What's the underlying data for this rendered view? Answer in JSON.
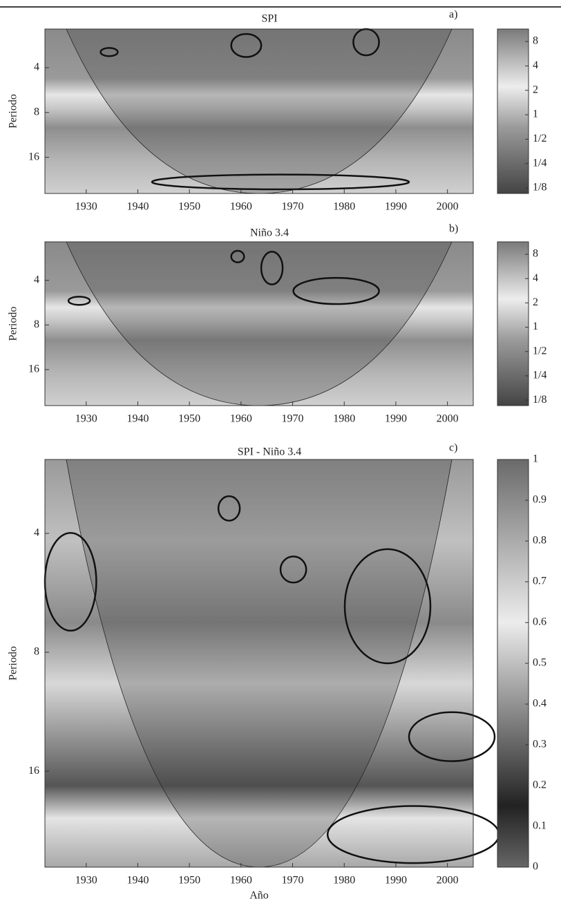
{
  "chart_data": [
    {
      "type": "heatmap",
      "title": "SPI",
      "panel_label": "a)",
      "ylabel": "Periodo",
      "xlim": [
        1922,
        2005
      ],
      "xticks": [
        1930,
        1940,
        1950,
        1960,
        1970,
        1980,
        1990,
        2000
      ],
      "ylim": [
        2.2,
        28
      ],
      "yticks": [
        4,
        8,
        16
      ],
      "yscale": "log",
      "colorbar": {
        "lim": [
          0.107,
          11.4
        ],
        "scale": "log",
        "ticks": [
          8,
          4,
          2,
          1,
          {
            "value": 0.5,
            "label": "1/2"
          },
          {
            "value": 0.25,
            "label": "1/4"
          },
          {
            "value": 0.125,
            "label": "1/8"
          }
        ]
      }
    },
    {
      "type": "heatmap",
      "title": "Niño 3.4",
      "panel_label": "b)",
      "ylabel": "Periodo",
      "xlim": [
        1922,
        2005
      ],
      "xticks": [
        1930,
        1940,
        1950,
        1960,
        1970,
        1980,
        1990,
        2000
      ],
      "ylim": [
        2.2,
        28
      ],
      "yticks": [
        4,
        8,
        16
      ],
      "yscale": "log",
      "colorbar": {
        "lim": [
          0.107,
          11.4
        ],
        "scale": "log",
        "ticks": [
          8,
          4,
          2,
          1,
          {
            "value": 0.5,
            "label": "1/2"
          },
          {
            "value": 0.25,
            "label": "1/4"
          },
          {
            "value": 0.125,
            "label": "1/8"
          }
        ]
      }
    },
    {
      "type": "heatmap",
      "title": "SPI - Niño 3.4",
      "panel_label": "c)",
      "ylabel": "Periodo",
      "xlabel": "Año",
      "xlim": [
        1922,
        2005
      ],
      "xticks": [
        1930,
        1940,
        1950,
        1960,
        1970,
        1980,
        1990,
        2000
      ],
      "ylim": [
        2.6,
        28
      ],
      "yticks": [
        4,
        8,
        16
      ],
      "yscale": "log",
      "colorbar": {
        "lim": [
          0,
          1
        ],
        "scale": "linear",
        "ticks": [
          0,
          0.1,
          0.2,
          0.3,
          0.4,
          0.5,
          0.6,
          0.7,
          0.8,
          0.9,
          1
        ]
      }
    }
  ]
}
